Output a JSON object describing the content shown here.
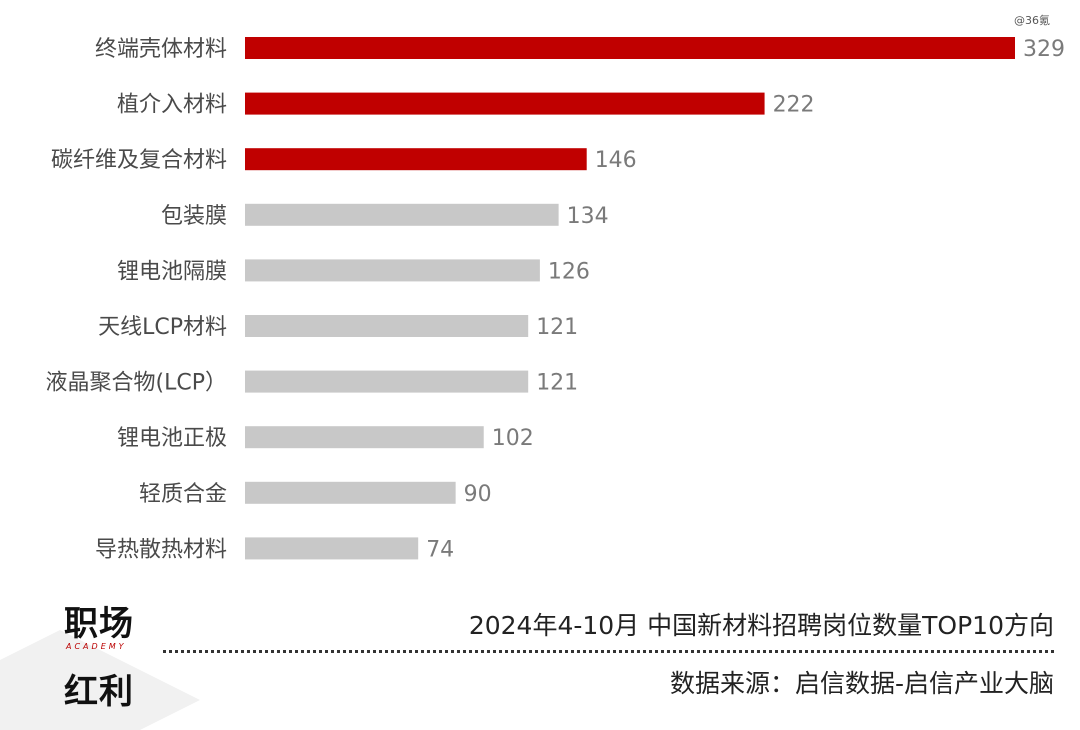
{
  "watermark": "@36氪",
  "chart_data": {
    "type": "bar",
    "orientation": "horizontal",
    "categories": [
      "终端壳体材料",
      "植介入材料",
      "碳纤维及复合材料",
      "包装膜",
      "锂电池隔膜",
      "天线LCP材料",
      "液晶聚合物(LCP）",
      "锂电池正极",
      "轻质合金",
      "导热散热材料"
    ],
    "values": [
      329,
      222,
      146,
      134,
      126,
      121,
      121,
      102,
      90,
      74
    ],
    "highlight_count": 3,
    "highlight_color": "#c00000",
    "base_color": "#c8c8c8",
    "grid": false,
    "legend": "none"
  },
  "footer": {
    "title": "2024年4-10月 中国新材料招聘岗位数量TOP10方向",
    "source": "数据来源：启信数据-启信产业大脑",
    "logo_line1": "职场",
    "logo_line2": "红利",
    "logo_small": "ACADEMY"
  }
}
